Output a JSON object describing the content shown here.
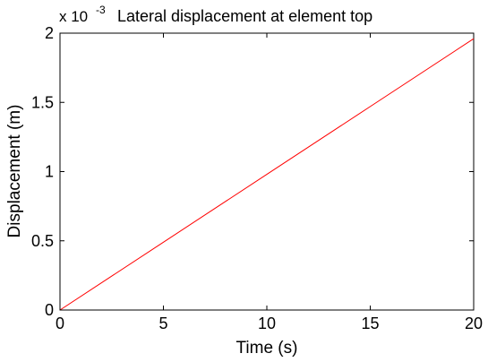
{
  "chart_data": {
    "type": "line",
    "title": "Lateral displacement at element top",
    "xlabel": "Time (s)",
    "ylabel": "Displacement (m)",
    "y_exponent_prefix": "x 10",
    "y_exponent_power": "-3",
    "y_scale_factor": 0.001,
    "xlim": [
      0,
      20
    ],
    "ylim": [
      0,
      2
    ],
    "x_ticks": [
      0,
      5,
      10,
      15,
      20
    ],
    "x_tick_labels": [
      "0",
      "5",
      "10",
      "15",
      "20"
    ],
    "y_ticks": [
      0,
      0.5,
      1,
      1.5,
      2
    ],
    "y_tick_labels": [
      "0",
      "0.5",
      "1",
      "1.5",
      "2"
    ],
    "grid": false,
    "line_color": "#ff0000",
    "series": [
      {
        "x": [
          0,
          5,
          10,
          15,
          20
        ],
        "y": [
          0,
          0.49,
          0.98,
          1.47,
          1.96
        ]
      }
    ]
  }
}
